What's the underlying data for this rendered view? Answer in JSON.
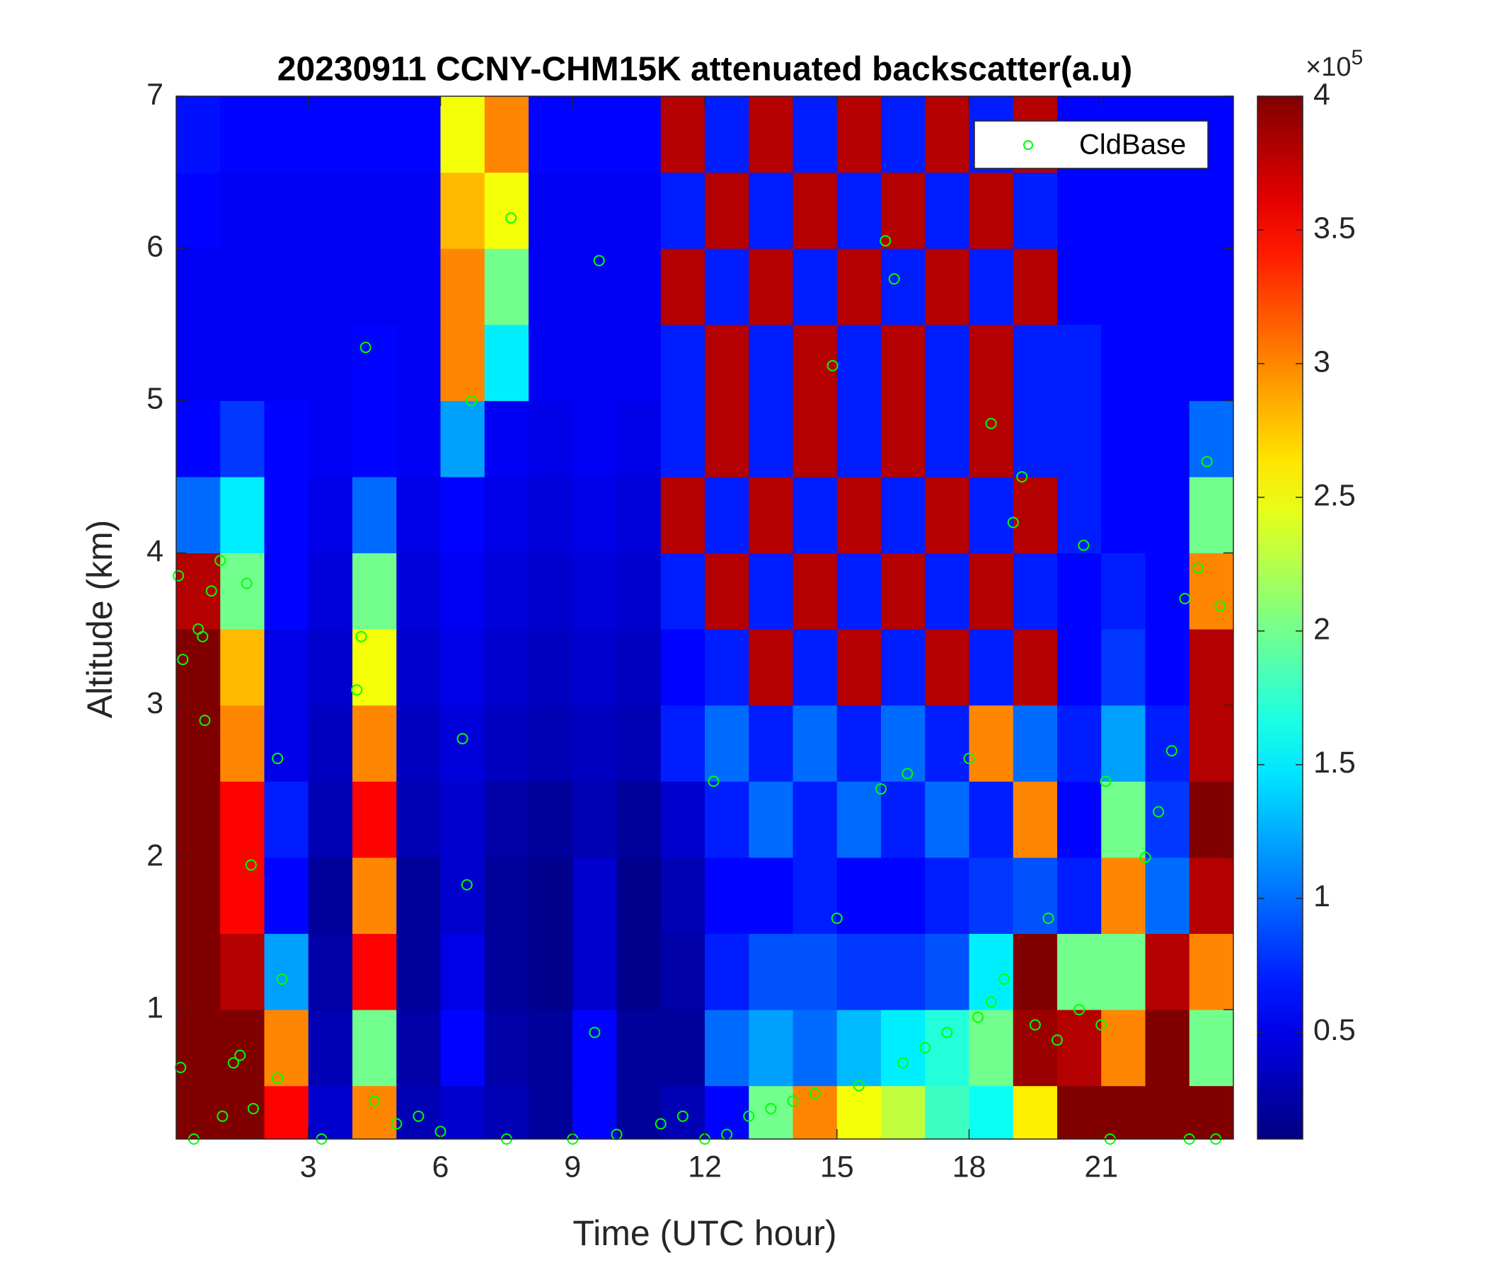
{
  "chart_data": {
    "type": "heatmap",
    "title": "20230911 CCNY-CHM15K attenuated backscatter(a.u)",
    "x_label": "Time (UTC hour)",
    "y_label": "Altitude (km)",
    "colormap": "jet",
    "xlim": [
      0,
      24
    ],
    "ylim": [
      0.15,
      7
    ],
    "xticks": [
      3,
      6,
      9,
      12,
      15,
      18,
      21
    ],
    "yticks": [
      1,
      2,
      3,
      4,
      5,
      6,
      7
    ],
    "x_edges": [
      0,
      1,
      2,
      3,
      4,
      5,
      6,
      7,
      8,
      9,
      10,
      11,
      12,
      13,
      14,
      15,
      16,
      17,
      18,
      19,
      20,
      21,
      22,
      23,
      24
    ],
    "y_edges": [
      0.15,
      0.5,
      1,
      1.5,
      2,
      2.5,
      3,
      3.5,
      4,
      4.5,
      5,
      5.5,
      6,
      6.5,
      7
    ],
    "clim": [
      10000,
      400000
    ],
    "colorbar_ticks": [
      {
        "value": 50000,
        "label": "0.5"
      },
      {
        "value": 100000,
        "label": "1"
      },
      {
        "value": 150000,
        "label": "1.5"
      },
      {
        "value": 200000,
        "label": "2"
      },
      {
        "value": 250000,
        "label": "2.5"
      },
      {
        "value": 300000,
        "label": "3"
      },
      {
        "value": 350000,
        "label": "3.5"
      },
      {
        "value": 400000,
        "label": "4"
      }
    ],
    "colorbar_multiplier": {
      "base": "×10",
      "exponent": "5"
    },
    "z": [
      [
        400000,
        400000,
        350000,
        40000,
        300000,
        30000,
        40000,
        30000,
        20000,
        60000,
        20000,
        30000,
        60000,
        200000,
        300000,
        250000,
        230000,
        180000,
        160000,
        260000,
        400000,
        400000,
        400000,
        400000
      ],
      [
        400000,
        400000,
        300000,
        30000,
        200000,
        25000,
        60000,
        25000,
        20000,
        60000,
        20000,
        20000,
        100000,
        120000,
        100000,
        130000,
        150000,
        170000,
        200000,
        390000,
        380000,
        300000,
        400000,
        200000
      ],
      [
        400000,
        380000,
        120000,
        25000,
        350000,
        20000,
        50000,
        20000,
        15000,
        40000,
        15000,
        25000,
        70000,
        90000,
        90000,
        80000,
        80000,
        90000,
        150000,
        400000,
        200000,
        200000,
        380000,
        300000
      ],
      [
        400000,
        350000,
        60000,
        20000,
        300000,
        20000,
        40000,
        20000,
        15000,
        40000,
        15000,
        30000,
        60000,
        60000,
        70000,
        60000,
        60000,
        70000,
        80000,
        90000,
        70000,
        300000,
        100000,
        380000
      ],
      [
        400000,
        350000,
        70000,
        30000,
        350000,
        30000,
        40000,
        25000,
        20000,
        30000,
        20000,
        40000,
        70000,
        100000,
        70000,
        100000,
        70000,
        100000,
        70000,
        300000,
        60000,
        200000,
        80000,
        400000
      ],
      [
        400000,
        300000,
        50000,
        35000,
        300000,
        35000,
        45000,
        35000,
        30000,
        35000,
        30000,
        70000,
        100000,
        70000,
        100000,
        70000,
        100000,
        70000,
        300000,
        100000,
        70000,
        120000,
        70000,
        380000
      ],
      [
        400000,
        280000,
        50000,
        40000,
        250000,
        40000,
        50000,
        40000,
        35000,
        40000,
        35000,
        60000,
        70000,
        380000,
        70000,
        380000,
        70000,
        380000,
        70000,
        380000,
        60000,
        80000,
        60000,
        380000
      ],
      [
        380000,
        200000,
        60000,
        45000,
        200000,
        45000,
        55000,
        45000,
        40000,
        45000,
        40000,
        70000,
        380000,
        70000,
        380000,
        70000,
        380000,
        70000,
        380000,
        70000,
        60000,
        70000,
        60000,
        300000
      ],
      [
        100000,
        150000,
        60000,
        50000,
        100000,
        50000,
        60000,
        50000,
        45000,
        50000,
        45000,
        380000,
        70000,
        380000,
        70000,
        380000,
        70000,
        380000,
        70000,
        380000,
        70000,
        60000,
        60000,
        200000
      ],
      [
        60000,
        80000,
        60000,
        55000,
        60000,
        55000,
        120000,
        55000,
        50000,
        55000,
        50000,
        70000,
        380000,
        70000,
        380000,
        70000,
        380000,
        70000,
        380000,
        70000,
        70000,
        60000,
        60000,
        100000
      ],
      [
        55000,
        55000,
        55000,
        55000,
        60000,
        55000,
        300000,
        150000,
        55000,
        55000,
        55000,
        70000,
        380000,
        70000,
        380000,
        70000,
        380000,
        70000,
        380000,
        70000,
        70000,
        60000,
        60000,
        60000
      ],
      [
        55000,
        55000,
        55000,
        55000,
        55000,
        55000,
        300000,
        200000,
        55000,
        55000,
        55000,
        380000,
        70000,
        380000,
        70000,
        380000,
        70000,
        380000,
        70000,
        380000,
        60000,
        60000,
        60000,
        60000
      ],
      [
        60000,
        55000,
        55000,
        55000,
        55000,
        55000,
        280000,
        250000,
        55000,
        55000,
        55000,
        70000,
        380000,
        70000,
        380000,
        70000,
        380000,
        70000,
        380000,
        70000,
        60000,
        60000,
        60000,
        60000
      ],
      [
        65000,
        60000,
        60000,
        60000,
        60000,
        60000,
        250000,
        300000,
        60000,
        60000,
        60000,
        380000,
        70000,
        380000,
        70000,
        380000,
        70000,
        380000,
        70000,
        380000,
        60000,
        60000,
        60000,
        60000
      ]
    ],
    "legend_position": "top-right",
    "series": [
      {
        "name": "CldBase",
        "color": "#00ff00",
        "x": [
          0.05,
          0.1,
          0.15,
          0.4,
          0.5,
          0.6,
          0.65,
          0.8,
          1.0,
          1.05,
          1.3,
          1.45,
          1.6,
          1.7,
          1.75,
          2.3,
          2.3,
          2.4,
          3.3,
          4.1,
          4.2,
          4.3,
          4.5,
          5.0,
          5.5,
          6.0,
          6.5,
          6.6,
          6.7,
          7.5,
          7.6,
          9.0,
          9.5,
          9.6,
          10.0,
          11.0,
          11.5,
          12.0,
          12.2,
          12.5,
          13.0,
          13.5,
          14.0,
          14.5,
          14.9,
          15.0,
          15.5,
          16.0,
          16.1,
          16.3,
          16.5,
          16.6,
          17.0,
          17.5,
          18.0,
          18.2,
          18.5,
          18.5,
          18.8,
          19.0,
          19.2,
          19.5,
          19.8,
          20.0,
          20.5,
          20.6,
          21.0,
          21.1,
          21.2,
          22.0,
          22.3,
          22.6,
          22.9,
          23.0,
          23.2,
          23.4,
          23.7,
          23.6
        ],
        "y": [
          3.85,
          0.62,
          3.3,
          0.15,
          3.5,
          3.45,
          2.9,
          3.75,
          3.95,
          0.3,
          0.65,
          0.7,
          3.8,
          1.95,
          0.35,
          2.65,
          0.55,
          1.2,
          0.15,
          3.1,
          3.45,
          5.35,
          0.4,
          0.25,
          0.3,
          0.2,
          2.78,
          1.82,
          5.0,
          0.15,
          6.2,
          0.15,
          0.85,
          5.92,
          0.18,
          0.25,
          0.3,
          0.15,
          2.5,
          0.18,
          0.3,
          0.35,
          0.4,
          0.45,
          5.23,
          1.6,
          0.5,
          2.45,
          6.05,
          5.8,
          0.65,
          2.55,
          0.75,
          0.85,
          2.65,
          0.95,
          1.05,
          4.85,
          1.2,
          4.2,
          4.5,
          0.9,
          1.6,
          0.8,
          1.0,
          4.05,
          0.9,
          2.5,
          0.15,
          2.0,
          2.3,
          2.7,
          3.7,
          0.15,
          3.9,
          4.6,
          3.65,
          0.15
        ]
      }
    ]
  }
}
